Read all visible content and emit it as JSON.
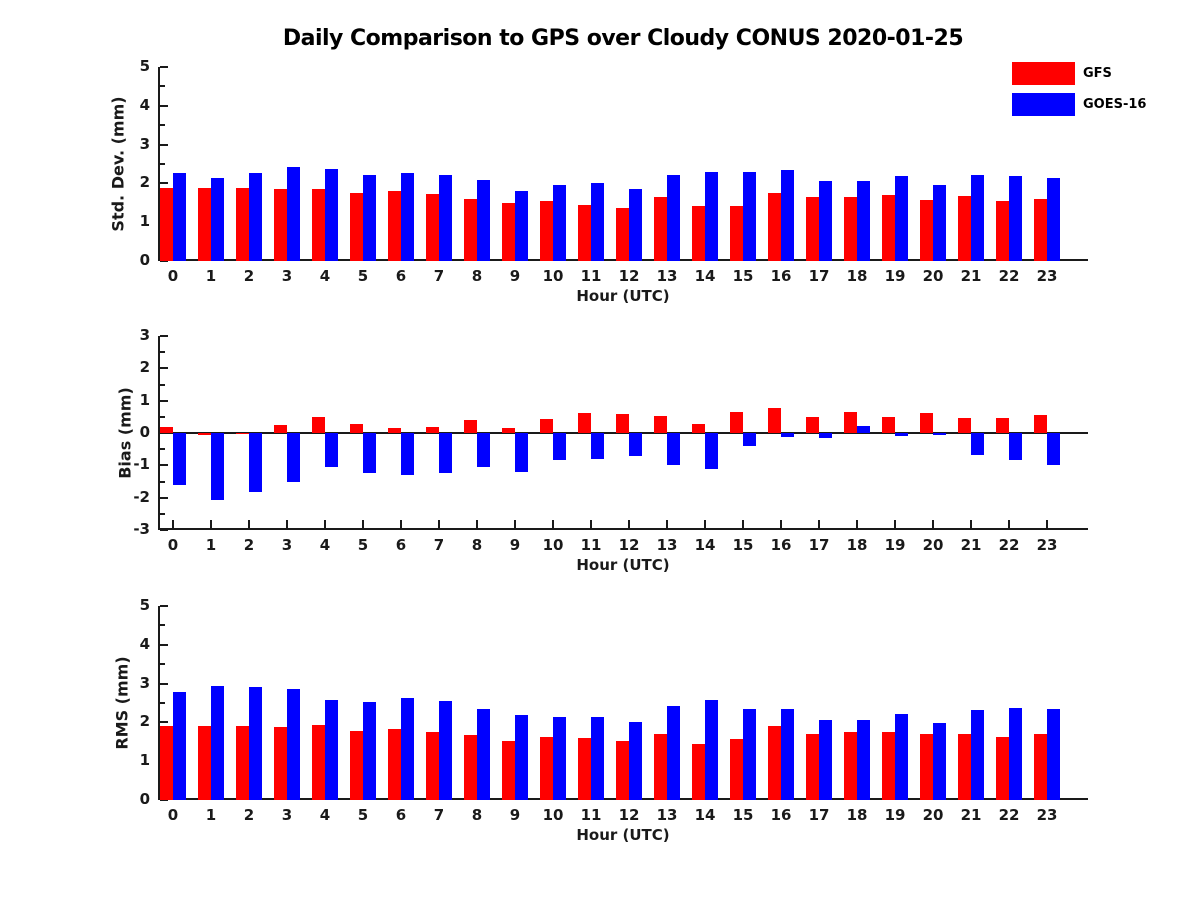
{
  "title": "Daily Comparison to GPS over Cloudy CONUS 2020-01-25",
  "legend": {
    "position": "top-right",
    "items": [
      {
        "label": "GFS",
        "color": "#ff0000"
      },
      {
        "label": "GOES-16",
        "color": "#0000ff"
      }
    ]
  },
  "colors": {
    "gfs": "#ff0000",
    "goes16": "#0000ff",
    "axis": "#1a1a1a",
    "background": "#ffffff"
  },
  "chart_data": [
    {
      "type": "bar",
      "ylabel": "Std. Dev. (mm)",
      "xlabel": "Hour (UTC)",
      "categories": [
        0,
        1,
        2,
        3,
        4,
        5,
        6,
        7,
        8,
        9,
        10,
        11,
        12,
        13,
        14,
        15,
        16,
        17,
        18,
        19,
        20,
        21,
        22,
        23
      ],
      "ylim": [
        0,
        5
      ],
      "yticks": [
        0,
        1,
        2,
        3,
        4,
        5
      ],
      "grid": false,
      "series": [
        {
          "name": "GFS",
          "color": "#ff0000",
          "values": [
            1.88,
            1.87,
            1.87,
            1.85,
            1.85,
            1.75,
            1.8,
            1.73,
            1.6,
            1.5,
            1.54,
            1.44,
            1.37,
            1.64,
            1.41,
            1.43,
            1.74,
            1.64,
            1.64,
            1.69,
            1.58,
            1.67,
            1.55,
            1.61
          ]
        },
        {
          "name": "GOES-16",
          "color": "#0000ff",
          "values": [
            2.28,
            2.15,
            2.26,
            2.41,
            2.37,
            2.22,
            2.26,
            2.21,
            2.08,
            1.81,
            1.95,
            2.0,
            1.85,
            2.21,
            2.3,
            2.3,
            2.34,
            2.05,
            2.05,
            2.19,
            1.96,
            2.22,
            2.2,
            2.13
          ]
        }
      ]
    },
    {
      "type": "bar",
      "ylabel": "Bias (mm)",
      "xlabel": "Hour (UTC)",
      "categories": [
        0,
        1,
        2,
        3,
        4,
        5,
        6,
        7,
        8,
        9,
        10,
        11,
        12,
        13,
        14,
        15,
        16,
        17,
        18,
        19,
        20,
        21,
        22,
        23
      ],
      "ylim": [
        -3,
        3
      ],
      "yticks": [
        -3,
        -2,
        -1,
        0,
        1,
        2,
        3
      ],
      "grid": false,
      "series": [
        {
          "name": "GFS",
          "color": "#ff0000",
          "values": [
            0.2,
            -0.05,
            -0.04,
            0.24,
            0.5,
            0.28,
            0.16,
            0.2,
            0.39,
            0.17,
            0.42,
            0.62,
            0.58,
            0.53,
            0.28,
            0.65,
            0.78,
            0.48,
            0.64,
            0.51,
            0.62,
            0.45,
            0.45,
            0.56
          ]
        },
        {
          "name": "GOES-16",
          "color": "#0000ff",
          "values": [
            -1.62,
            -2.06,
            -1.84,
            -1.51,
            -1.06,
            -1.25,
            -1.31,
            -1.25,
            -1.06,
            -1.21,
            -0.85,
            -0.8,
            -0.72,
            -0.98,
            -1.12,
            -0.4,
            -0.12,
            -0.15,
            0.22,
            -0.1,
            -0.07,
            -0.67,
            -0.85,
            -1.0
          ]
        }
      ]
    },
    {
      "type": "bar",
      "ylabel": "RMS (mm)",
      "xlabel": "Hour (UTC)",
      "categories": [
        0,
        1,
        2,
        3,
        4,
        5,
        6,
        7,
        8,
        9,
        10,
        11,
        12,
        13,
        14,
        15,
        16,
        17,
        18,
        19,
        20,
        21,
        22,
        23
      ],
      "ylim": [
        0,
        5
      ],
      "yticks": [
        0,
        1,
        2,
        3,
        4,
        5
      ],
      "grid": false,
      "series": [
        {
          "name": "GFS",
          "color": "#ff0000",
          "values": [
            1.92,
            1.9,
            1.9,
            1.87,
            1.94,
            1.77,
            1.82,
            1.75,
            1.67,
            1.52,
            1.62,
            1.59,
            1.52,
            1.71,
            1.44,
            1.56,
            1.9,
            1.69,
            1.76,
            1.76,
            1.7,
            1.71,
            1.63,
            1.7
          ]
        },
        {
          "name": "GOES-16",
          "color": "#0000ff",
          "values": [
            2.78,
            2.95,
            2.92,
            2.86,
            2.59,
            2.53,
            2.63,
            2.56,
            2.35,
            2.18,
            2.13,
            2.15,
            2.0,
            2.41,
            2.58,
            2.34,
            2.35,
            2.05,
            2.05,
            2.21,
            1.99,
            2.31,
            2.38,
            2.35
          ]
        }
      ]
    }
  ]
}
